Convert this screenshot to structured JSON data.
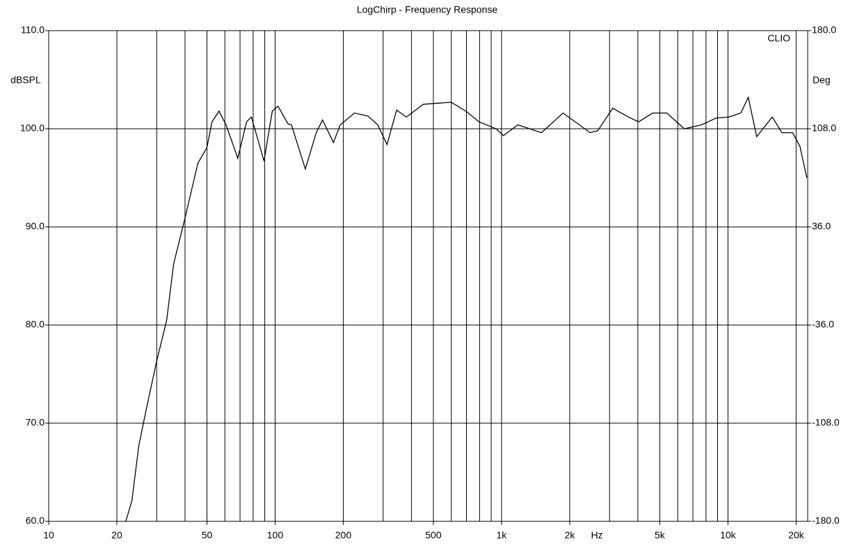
{
  "chart_data": {
    "type": "line",
    "title": "LogChirp - Frequency Response",
    "y_label": "dBSPL",
    "y2_label": "Deg",
    "x_label": "Hz",
    "annotation": "CLIO",
    "xscale": "log",
    "grid": true,
    "xlim": [
      10,
      22500
    ],
    "ylim": [
      60,
      110
    ],
    "y2lim": [
      -180,
      180
    ],
    "xticks": [
      {
        "value": 10,
        "label": "10"
      },
      {
        "value": 20,
        "label": "20"
      },
      {
        "value": 50,
        "label": "50"
      },
      {
        "value": 100,
        "label": "100"
      },
      {
        "value": 200,
        "label": "200"
      },
      {
        "value": 500,
        "label": "500"
      },
      {
        "value": 1000,
        "label": "1k"
      },
      {
        "value": 2000,
        "label": "2k"
      },
      {
        "value": 5000,
        "label": "5k"
      },
      {
        "value": 10000,
        "label": "10k"
      },
      {
        "value": 20000,
        "label": "20k"
      }
    ],
    "xminor": [
      20,
      30,
      40,
      50,
      60,
      70,
      80,
      90,
      100,
      200,
      300,
      400,
      500,
      600,
      700,
      800,
      900,
      1000,
      2000,
      3000,
      4000,
      5000,
      6000,
      7000,
      8000,
      9000,
      10000,
      20000
    ],
    "yticks": [
      {
        "value": 60,
        "label": "60.0"
      },
      {
        "value": 70,
        "label": "70.0"
      },
      {
        "value": 80,
        "label": "80.0"
      },
      {
        "value": 90,
        "label": "90.0"
      },
      {
        "value": 100,
        "label": "100.0"
      },
      {
        "value": 110,
        "label": "110.0"
      }
    ],
    "y2ticks": [
      {
        "value": -180,
        "label": "-180.0"
      },
      {
        "value": -108,
        "label": "-108.0"
      },
      {
        "value": -36,
        "label": "-36.0"
      },
      {
        "value": 36,
        "label": "36.0"
      },
      {
        "value": 108,
        "label": "108.0"
      },
      {
        "value": 180,
        "label": "180.0"
      }
    ],
    "x": [
      21.9,
      23.3,
      25,
      26.9,
      29.9,
      33.2,
      35.6,
      39.7,
      45.6,
      50,
      52.6,
      56.5,
      60.7,
      68.4,
      74.8,
      78.6,
      89.3,
      97.2,
      103,
      114,
      118,
      136,
      152,
      162,
      181,
      194,
      224,
      257,
      284,
      312,
      344,
      380,
      451,
      600,
      695,
      796,
      946,
      1020,
      1180,
      1500,
      1870,
      2460,
      2660,
      3100,
      3630,
      4030,
      4650,
      5370,
      6420,
      7640,
      8880,
      10100,
      11400,
      12300,
      13400,
      15700,
      17300,
      19300,
      20800,
      22300
    ],
    "series": [
      {
        "color": "#000000",
        "values": [
          60,
          62.1,
          67.7,
          71.3,
          76.2,
          80.5,
          86.2,
          90.6,
          96.5,
          98.1,
          100.7,
          101.8,
          100.4,
          97,
          100.7,
          101.2,
          96.7,
          101.8,
          102.3,
          100.5,
          100.4,
          95.9,
          99.6,
          100.9,
          98.6,
          100.4,
          101.6,
          101.3,
          100.4,
          98.4,
          101.9,
          101.2,
          102.5,
          102.7,
          101.8,
          100.7,
          100,
          99.3,
          100.4,
          99.6,
          101.6,
          99.6,
          99.8,
          102.1,
          101.2,
          100.7,
          101.6,
          101.6,
          100,
          100.4,
          101.1,
          101.2,
          101.6,
          103.2,
          99.2,
          101.2,
          99.6,
          99.6,
          98.2,
          95
        ]
      }
    ]
  }
}
